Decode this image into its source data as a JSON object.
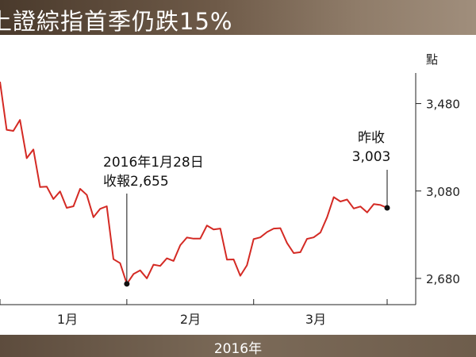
{
  "title": "上證綜指首季仍跌15%",
  "footer_label": "2016年",
  "chart_data": {
    "type": "line",
    "unit_label": "點",
    "ylim": [
      2560,
      3620
    ],
    "y_ticks": [
      2680,
      3080,
      3480
    ],
    "y_tick_labels": [
      "2,680",
      "3,080",
      "3,480"
    ],
    "x_ticks": [
      "1月",
      "2月",
      "3月"
    ],
    "line_color": "#d42a24",
    "series": [
      {
        "values": [
          3580,
          3360,
          3355,
          3405,
          3230,
          3270,
          3098,
          3100,
          3043,
          3078,
          3003,
          3010,
          3090,
          3062,
          2960,
          2998,
          3010,
          2768,
          2750,
          2655,
          2700,
          2717,
          2680,
          2743,
          2737,
          2772,
          2760,
          2832,
          2867,
          2862,
          2862,
          2922,
          2904,
          2908,
          2766,
          2767,
          2692,
          2740,
          2860,
          2868,
          2892,
          2908,
          2910,
          2842,
          2796,
          2800,
          2861,
          2868,
          2890,
          2960,
          3052,
          3032,
          3041,
          3000,
          3009,
          2982,
          3020,
          3016,
          3003
        ]
      }
    ],
    "annotations": [
      {
        "lines": [
          "2016年1月28日",
          "收報2,655"
        ],
        "point_index": 19
      },
      {
        "lines": [
          "昨收",
          "3,003"
        ],
        "point_index": 58
      }
    ]
  }
}
